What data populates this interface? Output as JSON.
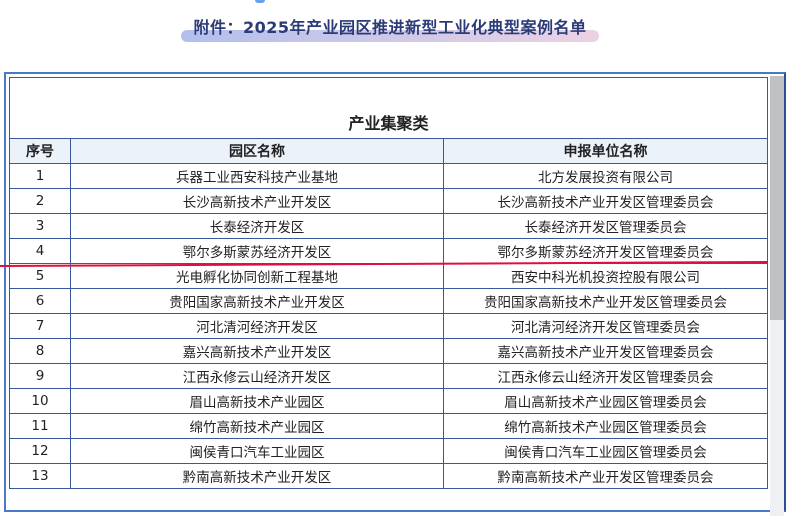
{
  "page_title": "附件：2025年产业园区推进新型工业化典型案例名单",
  "table": {
    "category": "产业集聚类",
    "headers": [
      "序号",
      "园区名称",
      "申报单位名称"
    ],
    "rows": [
      [
        "1",
        "兵器工业西安科技产业基地",
        "北方发展投资有限公司"
      ],
      [
        "2",
        "长沙高新技术产业开发区",
        "长沙高新技术产业开发区管理委员会"
      ],
      [
        "3",
        "长泰经济开发区",
        "长泰经济开发区管理委员会"
      ],
      [
        "4",
        "鄂尔多斯蒙苏经济开发区",
        "鄂尔多斯蒙苏经济开发区管理委员会"
      ],
      [
        "5",
        "光电孵化协同创新工程基地",
        "西安中科光机投资控股有限公司"
      ],
      [
        "6",
        "贵阳国家高新技术产业开发区",
        "贵阳国家高新技术产业开发区管理委员会"
      ],
      [
        "7",
        "河北清河经济开发区",
        "河北清河经济开发区管理委员会"
      ],
      [
        "8",
        "嘉兴高新技术产业开发区",
        "嘉兴高新技术产业开发区管理委员会"
      ],
      [
        "9",
        "江西永修云山经济开发区",
        "江西永修云山经济开发区管理委员会"
      ],
      [
        "10",
        "眉山高新技术产业园区",
        "眉山高新技术产业园区管理委员会"
      ],
      [
        "11",
        "绵竹高新技术产业园区",
        "绵竹高新技术产业园区管理委员会"
      ],
      [
        "12",
        "闽侯青口汽车工业园区",
        "闽侯青口汽车工业园区管理委员会"
      ],
      [
        "13",
        "黔南高新技术产业开发区",
        "黔南高新技术产业开发区管理委员会"
      ]
    ]
  },
  "colors": {
    "frame": "#4a78c8",
    "header_bg": "#ebf2fa",
    "annotation_line": "#e0103a",
    "title": "#2b3b78"
  }
}
